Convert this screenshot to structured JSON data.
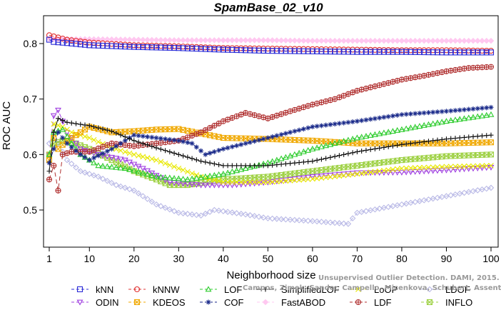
{
  "chart_data": {
    "type": "line",
    "title": "SpamBase_02_v10",
    "xlabel": "Neighborhood size",
    "ylabel": "ROC AUC",
    "xlim": [
      1,
      100
    ],
    "ylim": [
      0.46,
      0.84
    ],
    "xticks": [
      1,
      10,
      20,
      30,
      40,
      50,
      60,
      70,
      80,
      90,
      100
    ],
    "yticks": [
      0.5,
      0.6,
      0.7,
      0.8
    ],
    "grid": false,
    "legend_position": "bottom",
    "watermark": [
      "Unsupervised Outlier Detection. DAMI, 2015.",
      "Campos, Zimek, Sander, Campello, Micenkova, Schubert, Assent, Houle"
    ],
    "series": [
      {
        "name": "kNN",
        "color": "#2b2bd6",
        "marker": "square",
        "dash": "6,4",
        "keypoints": [
          [
            1,
            0.807
          ],
          [
            2,
            0.803
          ],
          [
            5,
            0.801
          ],
          [
            10,
            0.797
          ],
          [
            20,
            0.794
          ],
          [
            30,
            0.792
          ],
          [
            40,
            0.789
          ],
          [
            50,
            0.787
          ],
          [
            60,
            0.786
          ],
          [
            70,
            0.785
          ],
          [
            80,
            0.785
          ],
          [
            90,
            0.784
          ],
          [
            100,
            0.784
          ]
        ]
      },
      {
        "name": "kNNW",
        "color": "#e03030",
        "marker": "circle",
        "dash": "6,4",
        "keypoints": [
          [
            1,
            0.815
          ],
          [
            2,
            0.813
          ],
          [
            5,
            0.807
          ],
          [
            10,
            0.802
          ],
          [
            20,
            0.797
          ],
          [
            30,
            0.795
          ],
          [
            40,
            0.792
          ],
          [
            50,
            0.791
          ],
          [
            60,
            0.79
          ],
          [
            70,
            0.789
          ],
          [
            80,
            0.788
          ],
          [
            90,
            0.788
          ],
          [
            100,
            0.787
          ]
        ]
      },
      {
        "name": "LOF",
        "color": "#2ecc2e",
        "marker": "triangle",
        "dash": "6,4",
        "keypoints": [
          [
            1,
            0.6
          ],
          [
            2,
            0.64
          ],
          [
            4,
            0.645
          ],
          [
            6,
            0.62
          ],
          [
            8,
            0.6
          ],
          [
            12,
            0.58
          ],
          [
            18,
            0.575
          ],
          [
            25,
            0.56
          ],
          [
            32,
            0.555
          ],
          [
            40,
            0.565
          ],
          [
            50,
            0.585
          ],
          [
            60,
            0.61
          ],
          [
            70,
            0.63
          ],
          [
            80,
            0.645
          ],
          [
            90,
            0.66
          ],
          [
            100,
            0.672
          ]
        ]
      },
      {
        "name": "SimplifiedLOF",
        "color": "#111111",
        "marker": "plus",
        "dash": "",
        "keypoints": [
          [
            1,
            0.57
          ],
          [
            2,
            0.64
          ],
          [
            3,
            0.665
          ],
          [
            5,
            0.658
          ],
          [
            10,
            0.652
          ],
          [
            15,
            0.642
          ],
          [
            20,
            0.625
          ],
          [
            25,
            0.612
          ],
          [
            30,
            0.6
          ],
          [
            35,
            0.588
          ],
          [
            40,
            0.58
          ],
          [
            50,
            0.58
          ],
          [
            60,
            0.588
          ],
          [
            70,
            0.605
          ],
          [
            80,
            0.618
          ],
          [
            90,
            0.628
          ],
          [
            100,
            0.635
          ]
        ]
      },
      {
        "name": "LoOP",
        "color": "#e8e800",
        "marker": "x",
        "dash": "6,4",
        "keypoints": [
          [
            1,
            0.6
          ],
          [
            2,
            0.655
          ],
          [
            4,
            0.65
          ],
          [
            6,
            0.64
          ],
          [
            10,
            0.63
          ],
          [
            15,
            0.612
          ],
          [
            20,
            0.6
          ],
          [
            25,
            0.59
          ],
          [
            30,
            0.575
          ],
          [
            35,
            0.56
          ],
          [
            40,
            0.55
          ],
          [
            50,
            0.55
          ],
          [
            60,
            0.556
          ],
          [
            70,
            0.565
          ],
          [
            80,
            0.575
          ],
          [
            90,
            0.578
          ],
          [
            100,
            0.58
          ]
        ]
      },
      {
        "name": "LDOF",
        "color": "#b9b9e6",
        "marker": "diamond",
        "dash": "6,4",
        "keypoints": [
          [
            1,
            0.62
          ],
          [
            2,
            0.64
          ],
          [
            3,
            0.62
          ],
          [
            5,
            0.59
          ],
          [
            8,
            0.57
          ],
          [
            12,
            0.56
          ],
          [
            16,
            0.545
          ],
          [
            20,
            0.535
          ],
          [
            25,
            0.51
          ],
          [
            30,
            0.495
          ],
          [
            35,
            0.49
          ],
          [
            38,
            0.5
          ],
          [
            45,
            0.492
          ],
          [
            50,
            0.485
          ],
          [
            60,
            0.48
          ],
          [
            68,
            0.475
          ],
          [
            70,
            0.495
          ],
          [
            80,
            0.51
          ],
          [
            90,
            0.525
          ],
          [
            100,
            0.54
          ]
        ]
      },
      {
        "name": "ODIN",
        "color": "#a040e0",
        "marker": "triangle-down",
        "dash": "6,4",
        "keypoints": [
          [
            1,
            0.6
          ],
          [
            2,
            0.67
          ],
          [
            3,
            0.68
          ],
          [
            5,
            0.64
          ],
          [
            8,
            0.61
          ],
          [
            12,
            0.6
          ],
          [
            18,
            0.59
          ],
          [
            22,
            0.575
          ],
          [
            28,
            0.55
          ],
          [
            35,
            0.545
          ],
          [
            42,
            0.545
          ],
          [
            50,
            0.55
          ],
          [
            60,
            0.56
          ],
          [
            70,
            0.567
          ],
          [
            80,
            0.568
          ],
          [
            90,
            0.572
          ],
          [
            100,
            0.577
          ]
        ]
      },
      {
        "name": "KDEOS",
        "color": "#f0a800",
        "marker": "square-x",
        "dash": "6,4",
        "keypoints": [
          [
            1,
            0.59
          ],
          [
            2,
            0.63
          ],
          [
            3,
            0.61
          ],
          [
            5,
            0.625
          ],
          [
            8,
            0.64
          ],
          [
            10,
            0.65
          ],
          [
            15,
            0.64
          ],
          [
            20,
            0.642
          ],
          [
            25,
            0.645
          ],
          [
            30,
            0.646
          ],
          [
            35,
            0.638
          ],
          [
            40,
            0.63
          ],
          [
            50,
            0.628
          ],
          [
            60,
            0.625
          ],
          [
            70,
            0.62
          ],
          [
            80,
            0.62
          ],
          [
            90,
            0.62
          ],
          [
            100,
            0.622
          ]
        ]
      },
      {
        "name": "COF",
        "color": "#1a2a8a",
        "marker": "asterisk",
        "dash": "6,4",
        "keypoints": [
          [
            1,
            0.585
          ],
          [
            2,
            0.61
          ],
          [
            3,
            0.64
          ],
          [
            5,
            0.62
          ],
          [
            8,
            0.6
          ],
          [
            10,
            0.59
          ],
          [
            15,
            0.61
          ],
          [
            20,
            0.635
          ],
          [
            25,
            0.63
          ],
          [
            30,
            0.625
          ],
          [
            33,
            0.62
          ],
          [
            36,
            0.6
          ],
          [
            40,
            0.61
          ],
          [
            50,
            0.63
          ],
          [
            60,
            0.65
          ],
          [
            70,
            0.66
          ],
          [
            80,
            0.672
          ],
          [
            90,
            0.678
          ],
          [
            100,
            0.685
          ]
        ]
      },
      {
        "name": "FastABOD",
        "color": "#ffc8f0",
        "marker": "diamond-filled",
        "dash": "6,4",
        "keypoints": [
          [
            1,
            0.808
          ],
          [
            10,
            0.808
          ],
          [
            20,
            0.807
          ],
          [
            30,
            0.806
          ],
          [
            40,
            0.806
          ],
          [
            50,
            0.806
          ],
          [
            60,
            0.805
          ],
          [
            70,
            0.805
          ],
          [
            80,
            0.805
          ],
          [
            90,
            0.805
          ],
          [
            100,
            0.805
          ]
        ]
      },
      {
        "name": "LDF",
        "color": "#b03030",
        "marker": "circle-plus",
        "dash": "6,4",
        "keypoints": [
          [
            1,
            0.555
          ],
          [
            2,
            0.58
          ],
          [
            3,
            0.535
          ],
          [
            4,
            0.6
          ],
          [
            6,
            0.605
          ],
          [
            10,
            0.605
          ],
          [
            15,
            0.62
          ],
          [
            20,
            0.615
          ],
          [
            25,
            0.62
          ],
          [
            30,
            0.625
          ],
          [
            35,
            0.64
          ],
          [
            40,
            0.66
          ],
          [
            45,
            0.675
          ],
          [
            50,
            0.665
          ],
          [
            55,
            0.678
          ],
          [
            60,
            0.69
          ],
          [
            65,
            0.7
          ],
          [
            70,
            0.715
          ],
          [
            75,
            0.725
          ],
          [
            80,
            0.735
          ],
          [
            85,
            0.742
          ],
          [
            90,
            0.75
          ],
          [
            95,
            0.756
          ],
          [
            100,
            0.758
          ]
        ]
      },
      {
        "name": "INFLO",
        "color": "#9cd040",
        "marker": "square-x",
        "dash": "6,4",
        "keypoints": [
          [
            1,
            0.6
          ],
          [
            2,
            0.62
          ],
          [
            4,
            0.625
          ],
          [
            7,
            0.62
          ],
          [
            10,
            0.61
          ],
          [
            15,
            0.59
          ],
          [
            20,
            0.57
          ],
          [
            25,
            0.555
          ],
          [
            28,
            0.545
          ],
          [
            32,
            0.545
          ],
          [
            40,
            0.555
          ],
          [
            50,
            0.56
          ],
          [
            60,
            0.57
          ],
          [
            70,
            0.58
          ],
          [
            80,
            0.59
          ],
          [
            90,
            0.597
          ],
          [
            100,
            0.6
          ]
        ]
      }
    ]
  }
}
